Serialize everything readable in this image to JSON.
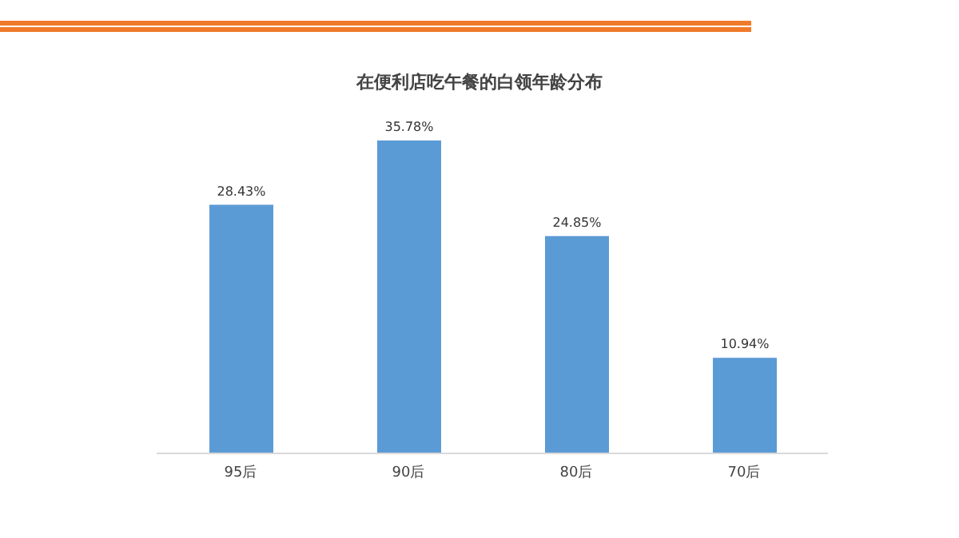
{
  "chart_data": {
    "type": "bar",
    "title": "在便利店吃午餐的白领年龄分布",
    "categories": [
      "95后",
      "90后",
      "80后",
      "70后"
    ],
    "values": [
      28.43,
      35.78,
      24.85,
      10.94
    ],
    "value_labels": [
      "28.43%",
      "35.78%",
      "24.85%",
      "10.94%"
    ],
    "color": "#5b9bd5",
    "grid": false,
    "legend": false
  }
}
